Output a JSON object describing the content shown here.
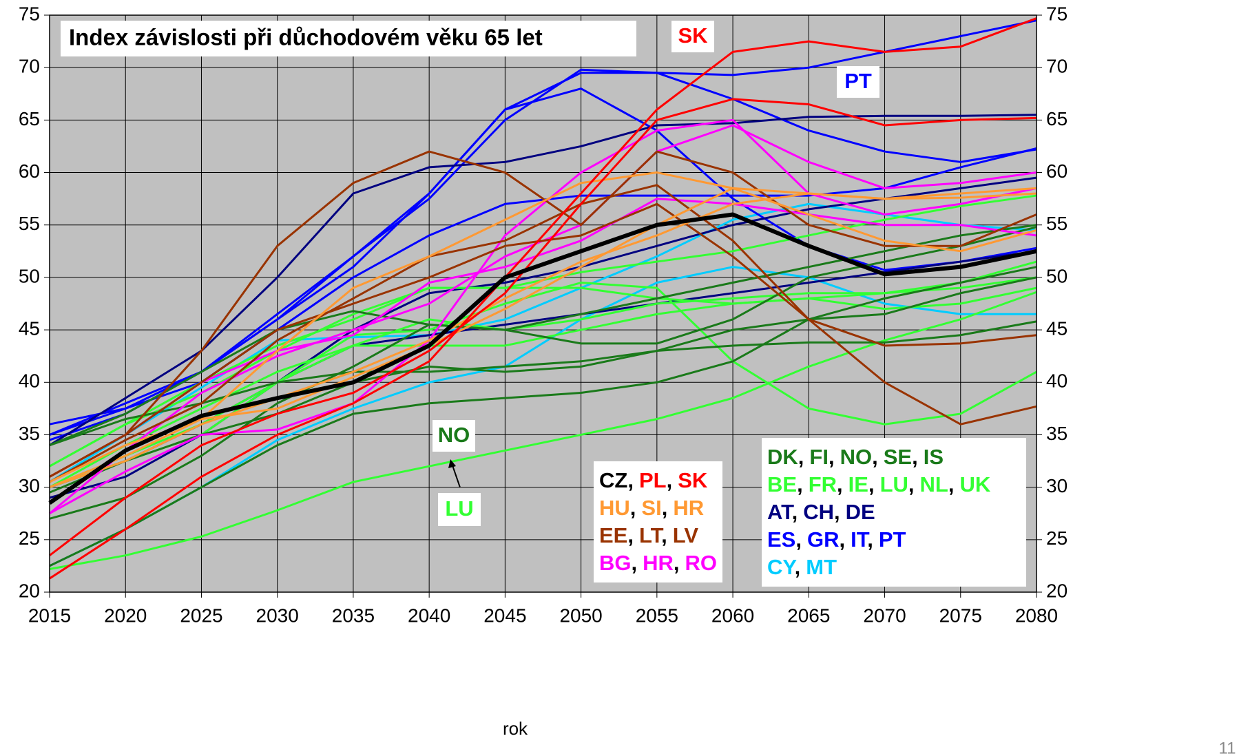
{
  "chart_data": {
    "type": "line",
    "title": "Index závislosti při důchodovém věku 65 let",
    "x_label": "rok",
    "page_number": "11",
    "annotations": [
      "SK",
      "PT",
      "NO",
      "LU"
    ],
    "x": [
      2015,
      2020,
      2025,
      2030,
      2035,
      2040,
      2045,
      2050,
      2055,
      2060,
      2065,
      2070,
      2075,
      2080
    ],
    "xlim": [
      2015,
      2080
    ],
    "xticks": [
      2015,
      2020,
      2025,
      2030,
      2035,
      2040,
      2045,
      2050,
      2055,
      2060,
      2065,
      2070,
      2075,
      2080
    ],
    "ylim": [
      20,
      75
    ],
    "yticks": [
      20,
      25,
      30,
      35,
      40,
      45,
      50,
      55,
      60,
      65,
      70,
      75
    ],
    "grid": true,
    "series": [
      {
        "name": "CZ",
        "color": "#000000",
        "values": [
          28.5,
          33.5,
          36.8,
          38.5,
          40,
          43.5,
          50,
          52.5,
          55,
          56,
          53,
          50.3,
          51,
          52.5
        ]
      },
      {
        "name": "PL",
        "color": "#ff0000",
        "values": [
          23.5,
          29,
          34,
          37,
          39,
          43,
          48.5,
          57,
          65,
          67,
          66.5,
          64.5,
          65,
          65.2
        ]
      },
      {
        "name": "SK",
        "color": "#ff0000",
        "values": [
          21.3,
          26,
          31,
          35,
          38,
          42,
          50,
          58,
          66,
          71.5,
          72.5,
          71.5,
          72,
          74.7
        ]
      },
      {
        "name": "HU",
        "color": "#ff9933",
        "values": [
          30,
          32.5,
          36,
          38.5,
          41,
          44,
          48,
          51.5,
          54,
          57,
          58,
          57.5,
          57.6,
          58
        ]
      },
      {
        "name": "SI",
        "color": "#ff9933",
        "values": [
          30.5,
          34,
          36.5,
          43,
          49,
          52,
          55.5,
          59,
          60,
          58.5,
          56,
          53.5,
          52.5,
          54.5
        ]
      },
      {
        "name": "HR",
        "color": "#ff9933",
        "values": [
          30,
          33,
          36.5,
          37.5,
          40.5,
          43.5,
          47,
          51,
          55,
          58.5,
          58,
          57.5,
          58,
          58.5
        ]
      },
      {
        "name": "EE",
        "color": "#993300",
        "values": [
          31,
          35,
          40,
          45,
          47.5,
          50,
          53,
          54,
          57,
          52,
          46,
          40,
          36,
          37.7
        ]
      },
      {
        "name": "LT",
        "color": "#993300",
        "values": [
          31,
          35,
          43,
          53,
          59,
          62,
          60,
          55,
          62,
          60,
          55,
          53,
          53,
          56
        ]
      },
      {
        "name": "LV",
        "color": "#993300",
        "values": [
          30.5,
          34.5,
          38,
          44,
          48,
          52,
          53.5,
          57,
          58.8,
          53.5,
          46,
          43.5,
          43.7,
          44.5
        ]
      },
      {
        "name": "BG",
        "color": "#ff00ff",
        "values": [
          27.5,
          33.5,
          39,
          42.5,
          45,
          47.5,
          52,
          55,
          62,
          64.5,
          61,
          58.5,
          59,
          60
        ]
      },
      {
        "name": "HR",
        "color": "#ff00ff",
        "values": [
          31,
          35,
          40,
          43,
          44.5,
          49.5,
          51,
          53.5,
          57.5,
          57,
          56,
          55,
          55,
          54
        ]
      },
      {
        "name": "RO",
        "color": "#ff00ff",
        "values": [
          27.5,
          31.5,
          35,
          35.5,
          38,
          44,
          54,
          60,
          64,
          65,
          58,
          56,
          57,
          58.5
        ]
      },
      {
        "name": "DK",
        "color": "#1a7a1a",
        "values": [
          34,
          37,
          41,
          45,
          46.8,
          45.5,
          45,
          43.7,
          43.7,
          46,
          50,
          51.5,
          53,
          54.8
        ]
      },
      {
        "name": "FI",
        "color": "#1a7a1a",
        "values": [
          27,
          29,
          33,
          38,
          41.5,
          45.5,
          45,
          46.5,
          48,
          49.5,
          51,
          52.5,
          54,
          55
        ]
      },
      {
        "name": "NO",
        "color": "#1a7a1a",
        "values": [
          29.5,
          32.5,
          35,
          37,
          40,
          41.5,
          41,
          41.5,
          43,
          45,
          46,
          46.5,
          48.5,
          50
        ]
      },
      {
        "name": "SE",
        "color": "#1a7a1a",
        "values": [
          34,
          36.5,
          38,
          40,
          41,
          41,
          41.5,
          42,
          43,
          43.5,
          43.8,
          43.8,
          44.5,
          45.8
        ]
      },
      {
        "name": "IS",
        "color": "#1a7a1a",
        "values": [
          22.5,
          26,
          30,
          34,
          37,
          38,
          38.5,
          39,
          40,
          42,
          46,
          48,
          49.5,
          51
        ]
      },
      {
        "name": "BE",
        "color": "#33ff33",
        "values": [
          30,
          32.5,
          35,
          40,
          43.5,
          43.5,
          43.5,
          45,
          46.5,
          47.5,
          48,
          48.5,
          49.5,
          51.5
        ]
      },
      {
        "name": "FR",
        "color": "#33ff33",
        "values": [
          32,
          36,
          39,
          43,
          46.5,
          49,
          49,
          49,
          48,
          47.5,
          48,
          47,
          47.5,
          49
        ]
      },
      {
        "name": "IE",
        "color": "#33ff33",
        "values": [
          30,
          33,
          36,
          40,
          44.5,
          45,
          47.5,
          49.5,
          49,
          42,
          37.5,
          36,
          37,
          41
        ]
      },
      {
        "name": "LU",
        "color": "#33ff33",
        "values": [
          22.2,
          23.5,
          25.3,
          27.8,
          30.5,
          32,
          33.5,
          35,
          36.5,
          38.5,
          41.5,
          44,
          46,
          48.6
        ]
      },
      {
        "name": "NL",
        "color": "#33ff33",
        "values": [
          30,
          34,
          37.5,
          41,
          43.5,
          46,
          45,
          46,
          47.5,
          48,
          48.5,
          48.5,
          49,
          50
        ]
      },
      {
        "name": "UK",
        "color": "#33ff33",
        "values": [
          32,
          36,
          40,
          43.5,
          46,
          49,
          49,
          50.5,
          51.5,
          52.5,
          54,
          55.5,
          56.8,
          57.8
        ]
      },
      {
        "name": "AT",
        "color": "#000080",
        "values": [
          30,
          32.5,
          36,
          40,
          43.5,
          44.5,
          45.5,
          46.5,
          47.5,
          48.5,
          49.5,
          50.5,
          51.5,
          52.5
        ]
      },
      {
        "name": "CH",
        "color": "#000080",
        "values": [
          29,
          31,
          35,
          40,
          45,
          48.5,
          49.5,
          51,
          53,
          55,
          56.5,
          57.5,
          58.5,
          59.5
        ]
      },
      {
        "name": "DE",
        "color": "#000080",
        "values": [
          34,
          38.5,
          43,
          50,
          58,
          60.5,
          61,
          62.5,
          64.5,
          64.7,
          65.3,
          65.4,
          65.4,
          65.5
        ]
      },
      {
        "name": "ES",
        "color": "#0000ff",
        "values": [
          35,
          38,
          41,
          46,
          51,
          58,
          66,
          68,
          64,
          57.5,
          53,
          50.7,
          51.5,
          52.8
        ]
      },
      {
        "name": "GR",
        "color": "#0000ff",
        "values": [
          36,
          37.5,
          40,
          45,
          50,
          54,
          57,
          57.8,
          57.8,
          57.8,
          57.8,
          58.5,
          60.5,
          62.3
        ]
      },
      {
        "name": "IT",
        "color": "#0000ff",
        "values": [
          34.5,
          37,
          41,
          46.5,
          52,
          57.5,
          65,
          69.8,
          69.5,
          67,
          64,
          62,
          61,
          62.2
        ]
      },
      {
        "name": "PT",
        "color": "#0000ff",
        "values": [
          35,
          37.5,
          41,
          46,
          52,
          58,
          66,
          69.5,
          69.5,
          69.3,
          70,
          71.5,
          73,
          74.5
        ]
      },
      {
        "name": "CY",
        "color": "#00ccff",
        "values": [
          30.5,
          35,
          39.5,
          44,
          44.3,
          44.5,
          46,
          49,
          52,
          55.5,
          57,
          56,
          55,
          54.5
        ]
      },
      {
        "name": "MT",
        "color": "#00ccff",
        "values": [
          22.5,
          26,
          30,
          34.5,
          37.5,
          40,
          41.5,
          46,
          49.5,
          51,
          50,
          47.5,
          46.5,
          46.5
        ]
      }
    ]
  }
}
